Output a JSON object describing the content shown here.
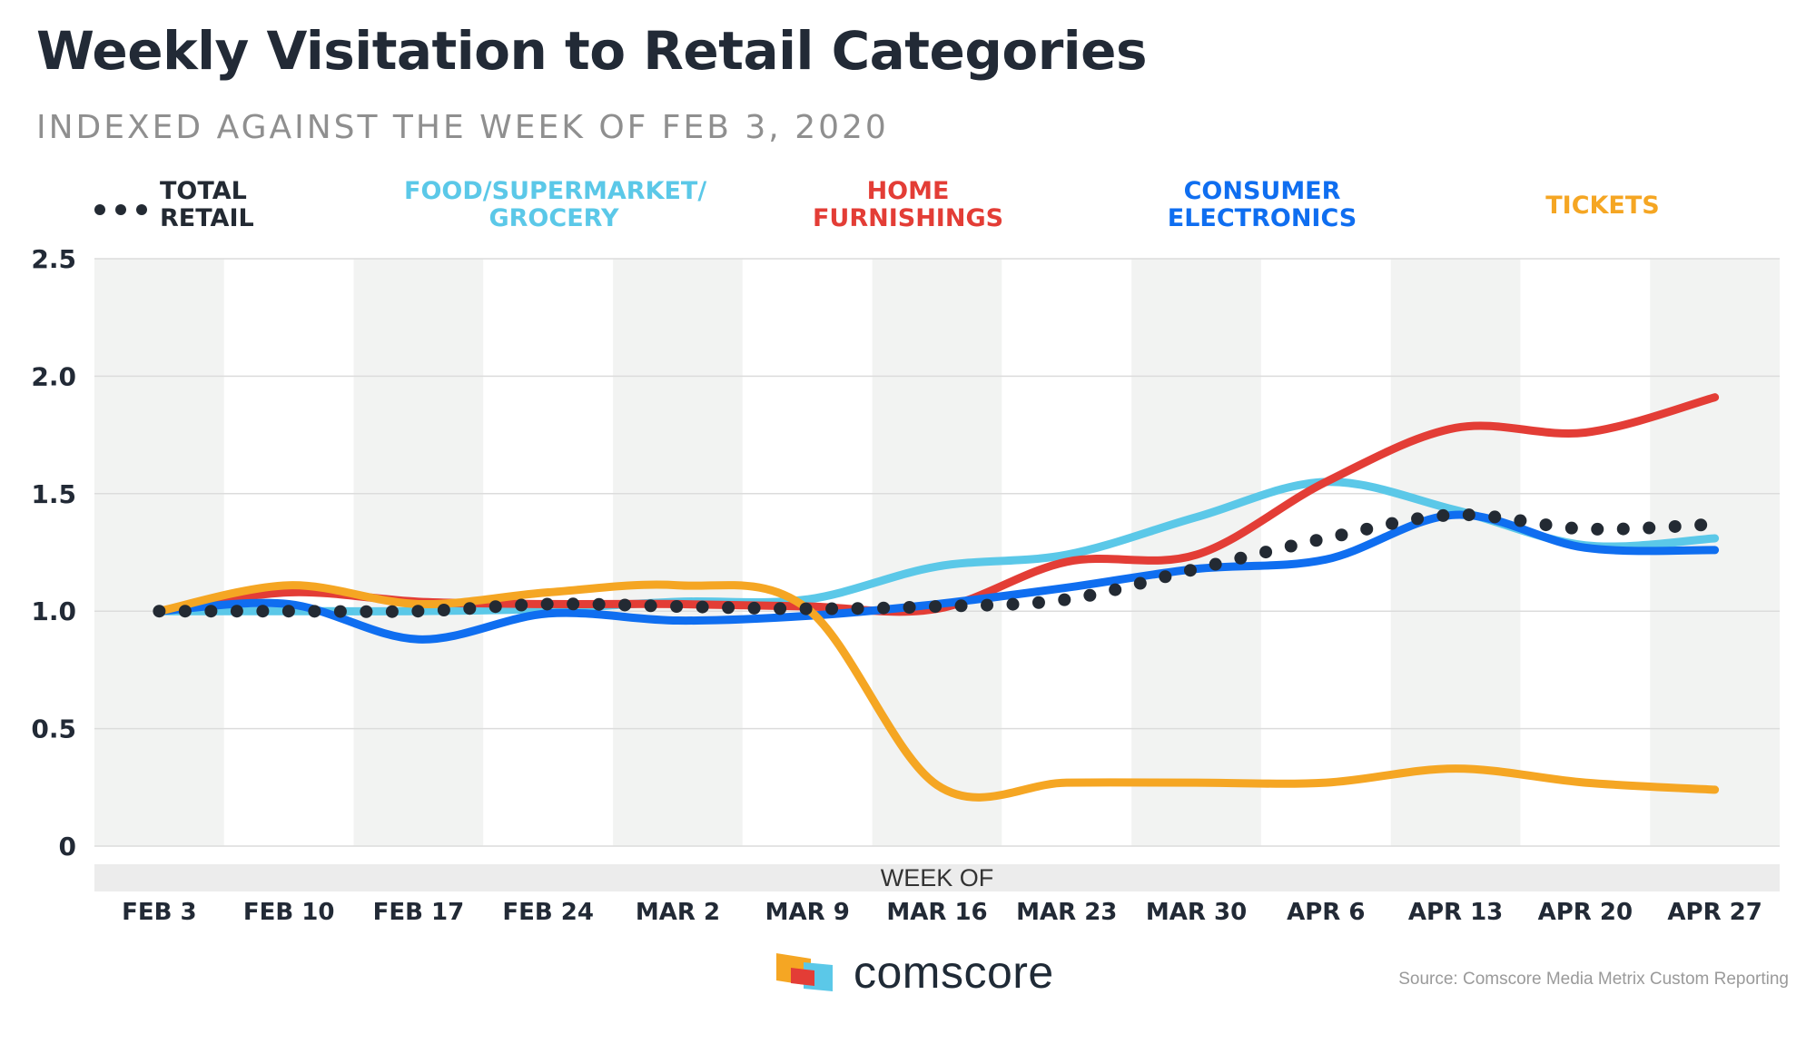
{
  "title": "Weekly Visitation to Retail Categories",
  "subtitle": "INDEXED AGAINST THE WEEK OF FEB 3, 2020",
  "source": "Source: Comscore Media Metrix Custom Reporting",
  "brand": "comscore",
  "chart_data": {
    "type": "line",
    "title": "Weekly Visitation to Retail Categories",
    "subtitle": "INDEXED AGAINST THE WEEK OF FEB 3, 2020",
    "xlabel": "WEEK OF",
    "ylabel": "",
    "ylim": [
      0,
      2.5
    ],
    "yticks": [
      0,
      0.5,
      1.0,
      1.5,
      2.0,
      2.5
    ],
    "ytick_labels": [
      "0",
      "0.5",
      "1.0",
      "1.5",
      "2.0",
      "2.5"
    ],
    "categories": [
      "FEB 3",
      "FEB 10",
      "FEB 17",
      "FEB 24",
      "MAR 2",
      "MAR 9",
      "MAR 16",
      "MAR 23",
      "MAR 30",
      "APR 6",
      "APR 13",
      "APR 20",
      "APR 27"
    ],
    "legend_position": "top",
    "series": [
      {
        "name": "TOTAL RETAIL",
        "legend": [
          "TOTAL",
          "RETAIL"
        ],
        "style": "dotted",
        "color": "#232a33",
        "values": [
          1.0,
          1.0,
          1.0,
          1.03,
          1.02,
          1.01,
          1.02,
          1.05,
          1.18,
          1.31,
          1.41,
          1.35,
          1.37
        ]
      },
      {
        "name": "FOOD/SUPERMARKET/GROCERY",
        "legend": [
          "FOOD/SUPERMARKET/",
          "GROCERY"
        ],
        "style": "solid",
        "color": "#5bc8e8",
        "values": [
          1.0,
          1.0,
          1.0,
          1.01,
          1.04,
          1.05,
          1.19,
          1.24,
          1.4,
          1.55,
          1.43,
          1.28,
          1.31
        ]
      },
      {
        "name": "HOME FURNISHINGS",
        "legend": [
          "HOME",
          "FURNISHINGS"
        ],
        "style": "solid",
        "color": "#e33d36",
        "values": [
          1.0,
          1.08,
          1.04,
          1.03,
          1.03,
          1.02,
          1.01,
          1.21,
          1.24,
          1.55,
          1.78,
          1.76,
          1.91
        ]
      },
      {
        "name": "CONSUMER ELECTRONICS",
        "legend": [
          "CONSUMER",
          "ELECTRONICS"
        ],
        "style": "solid",
        "color": "#0f6ef0",
        "values": [
          1.0,
          1.03,
          0.88,
          0.99,
          0.96,
          0.98,
          1.03,
          1.1,
          1.18,
          1.22,
          1.41,
          1.27,
          1.26
        ]
      },
      {
        "name": "TICKETS",
        "legend": [
          "TICKETS"
        ],
        "style": "solid",
        "color": "#f5a623",
        "values": [
          1.0,
          1.11,
          1.03,
          1.08,
          1.11,
          1.01,
          0.26,
          0.27,
          0.27,
          0.27,
          0.33,
          0.27,
          0.24
        ]
      }
    ]
  }
}
